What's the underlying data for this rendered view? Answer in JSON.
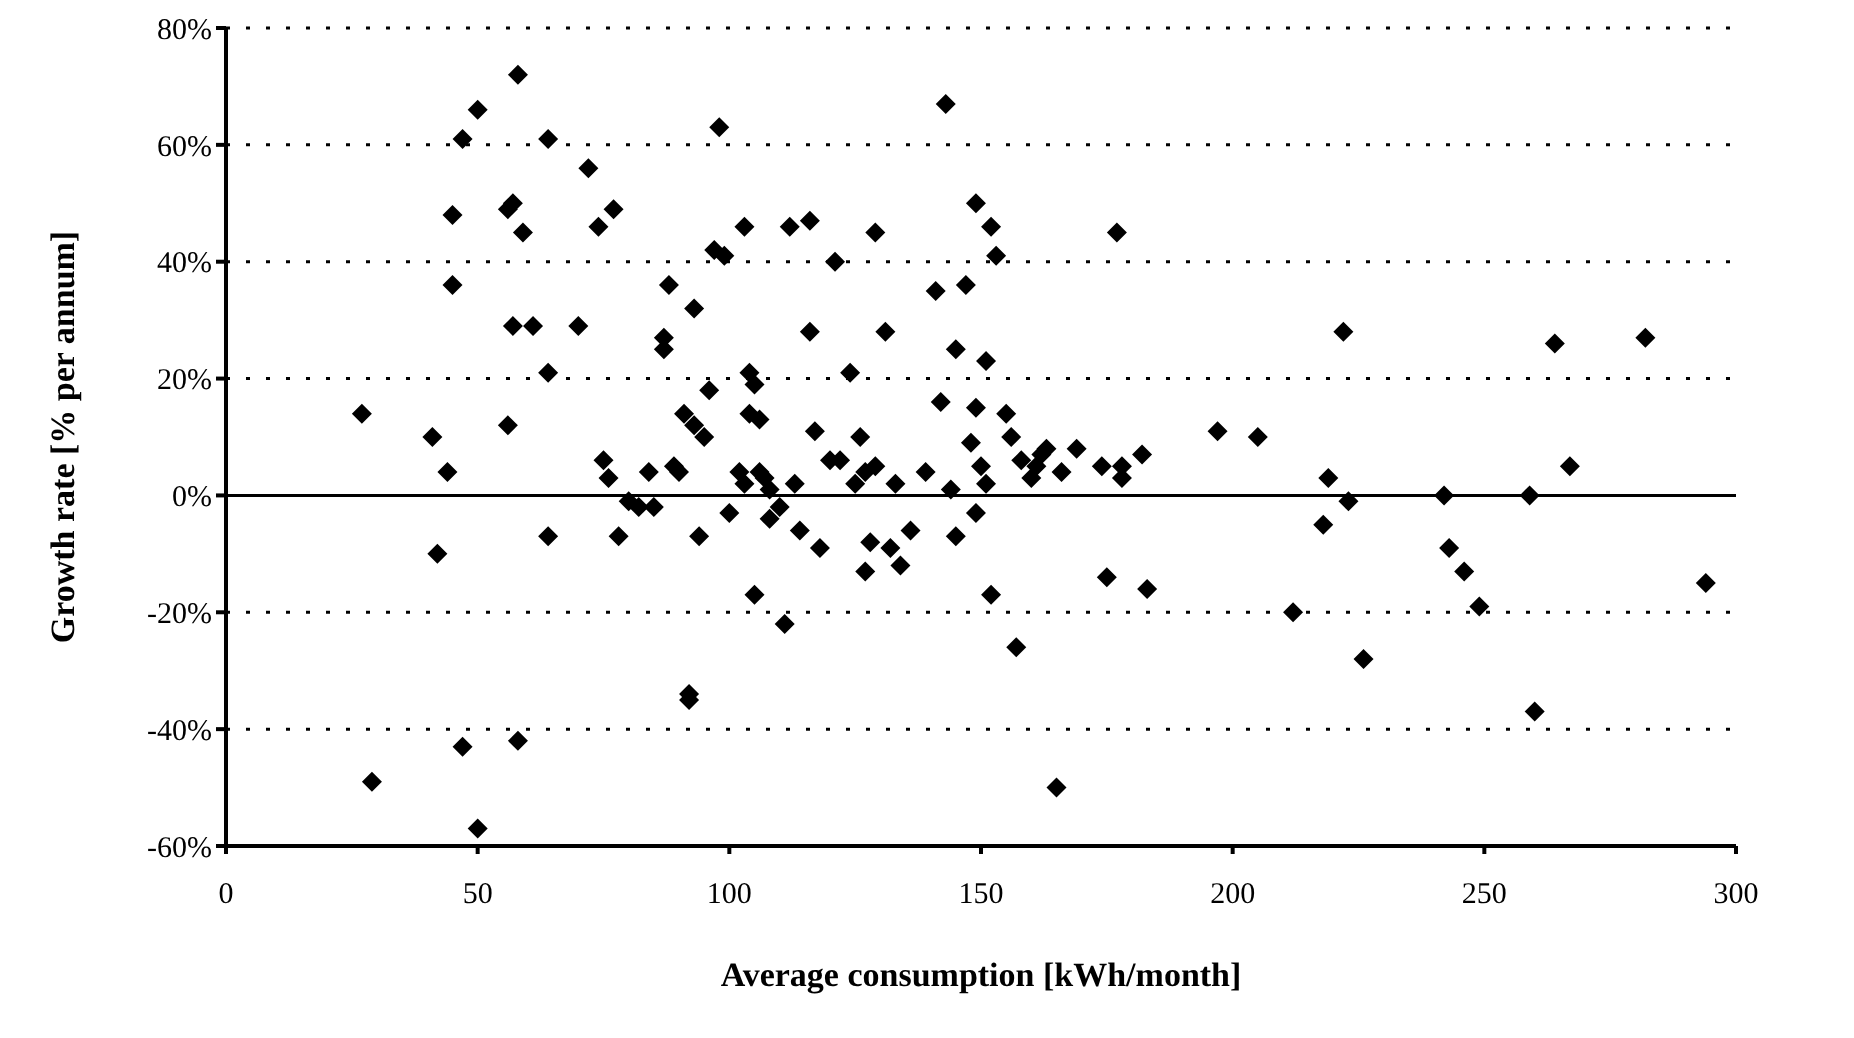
{
  "chart_data": {
    "type": "scatter",
    "xlabel": "Average consumption [kWh/month]",
    "ylabel": "Growth rate [% per annum]",
    "x": [
      27,
      29,
      41,
      42,
      44,
      45,
      45,
      47,
      47,
      50,
      50,
      56,
      56,
      57,
      57,
      58,
      58,
      59,
      61,
      64,
      64,
      64,
      70,
      72,
      74,
      75,
      76,
      77,
      78,
      80,
      82,
      84,
      85,
      87,
      87,
      88,
      89,
      90,
      91,
      92,
      92,
      93,
      93,
      94,
      95,
      96,
      97,
      98,
      99,
      100,
      102,
      103,
      103,
      104,
      104,
      105,
      105,
      106,
      106,
      107,
      108,
      108,
      110,
      111,
      112,
      113,
      114,
      116,
      116,
      117,
      118,
      120,
      121,
      122,
      124,
      125,
      126,
      127,
      127,
      128,
      129,
      129,
      131,
      132,
      133,
      134,
      136,
      139,
      141,
      142,
      143,
      144,
      145,
      145,
      147,
      148,
      149,
      149,
      149,
      150,
      151,
      151,
      152,
      152,
      153,
      155,
      156,
      157,
      158,
      160,
      161,
      162,
      163,
      165,
      166,
      169,
      174,
      175,
      177,
      178,
      178,
      182,
      183,
      197,
      205,
      212,
      218,
      219,
      222,
      223,
      226,
      242,
      243,
      246,
      249,
      259,
      260,
      264,
      267,
      282,
      294
    ],
    "values": [
      14,
      -49,
      10,
      -10,
      4,
      48,
      36,
      61,
      -43,
      66,
      -57,
      49,
      12,
      29,
      50,
      72,
      -42,
      45,
      29,
      61,
      21,
      -7,
      29,
      56,
      46,
      6,
      3,
      49,
      -7,
      -1,
      -2,
      4,
      -2,
      25,
      27,
      36,
      5,
      4,
      14,
      -34,
      -35,
      12,
      32,
      -7,
      10,
      18,
      42,
      63,
      41,
      -3,
      4,
      2,
      46,
      21,
      14,
      19,
      -17,
      13,
      4,
      3,
      1,
      -4,
      -2,
      -22,
      46,
      2,
      -6,
      47,
      28,
      11,
      -9,
      6,
      40,
      6,
      21,
      2,
      10,
      -13,
      4,
      -8,
      5,
      45,
      28,
      -9,
      2,
      -12,
      -6,
      4,
      35,
      16,
      67,
      1,
      -7,
      25,
      36,
      9,
      50,
      15,
      -3,
      5,
      2,
      23,
      -17,
      46,
      41,
      14,
      10,
      -26,
      6,
      3,
      5,
      7,
      8,
      -50,
      4,
      8,
      5,
      -14,
      45,
      5,
      3,
      7,
      -16,
      11,
      10,
      -20,
      -5,
      3,
      28,
      -1,
      -28,
      0,
      -9,
      -13,
      -19,
      0,
      -37,
      26,
      5,
      27,
      -15
    ],
    "color": "#000000",
    "marker": "diamond",
    "xlim": [
      0,
      300
    ],
    "xticks": [
      0,
      50,
      100,
      150,
      200,
      250,
      300
    ],
    "ylim": [
      -60,
      80
    ],
    "yticks": [
      {
        "value": -60,
        "label": "-60%"
      },
      {
        "value": -40,
        "label": "-40%"
      },
      {
        "value": -20,
        "label": "-20%"
      },
      {
        "value": 0,
        "label": "0%"
      },
      {
        "value": 20,
        "label": "20%"
      },
      {
        "value": 40,
        "label": "40%"
      },
      {
        "value": 60,
        "label": "60%"
      },
      {
        "value": 80,
        "label": "80%"
      }
    ],
    "grid": "y",
    "legend": false,
    "ref_lines": [
      {
        "axis": "y",
        "value": 0,
        "color": "#000000",
        "line_style": "solid"
      }
    ]
  }
}
